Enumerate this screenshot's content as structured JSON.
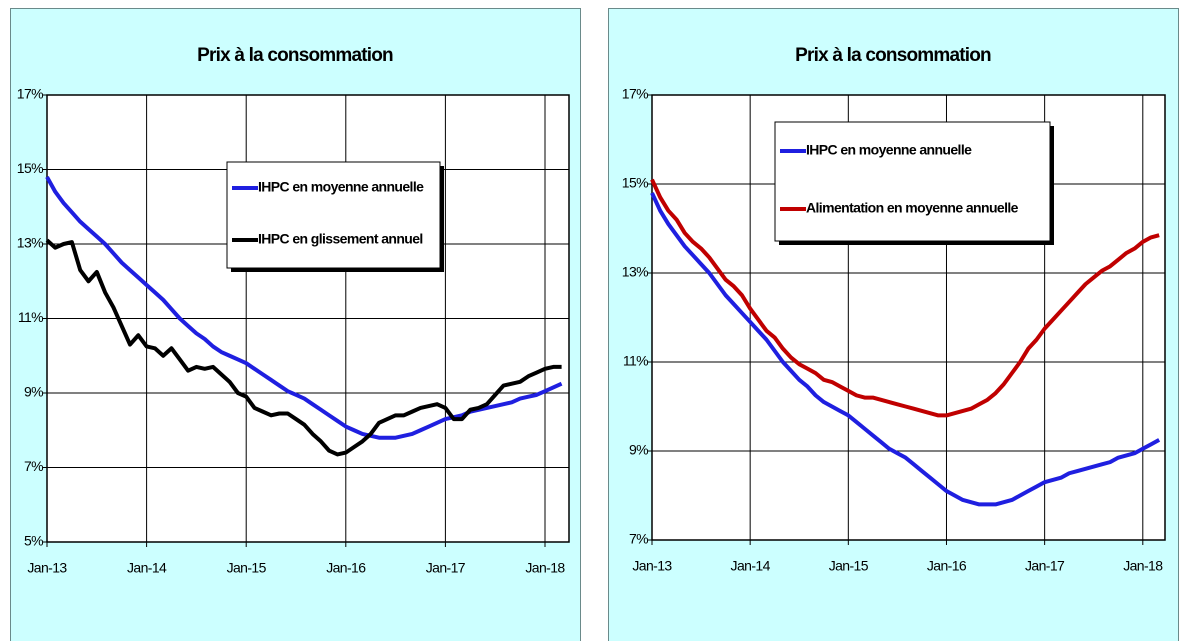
{
  "chart_data": [
    {
      "type": "line",
      "title": "Prix à la consommation",
      "categories": [
        "Jan-13",
        null,
        null,
        null,
        null,
        null,
        null,
        null,
        null,
        null,
        null,
        null,
        "Jan-14",
        null,
        null,
        null,
        null,
        null,
        null,
        null,
        null,
        null,
        null,
        null,
        "Jan-15",
        null,
        null,
        null,
        null,
        null,
        null,
        null,
        null,
        null,
        null,
        null,
        "Jan-16",
        null,
        null,
        null,
        null,
        null,
        null,
        null,
        null,
        null,
        null,
        null,
        "Jan-17",
        null,
        null,
        null,
        null,
        null,
        null,
        null,
        null,
        null,
        null,
        null,
        "Jan-18",
        null,
        null
      ],
      "series": [
        {
          "name": "IHPC en moyenne annuelle",
          "color": "#1f1fe0",
          "values": [
            14.8,
            14.4,
            14.1,
            13.85,
            13.6,
            13.4,
            13.2,
            13.0,
            12.75,
            12.5,
            12.3,
            12.1,
            11.9,
            11.7,
            11.5,
            11.25,
            11.0,
            10.8,
            10.6,
            10.45,
            10.25,
            10.1,
            10.0,
            9.9,
            9.8,
            9.65,
            9.5,
            9.35,
            9.2,
            9.05,
            8.95,
            8.85,
            8.7,
            8.55,
            8.4,
            8.25,
            8.1,
            8.0,
            7.9,
            7.85,
            7.8,
            7.8,
            7.8,
            7.85,
            7.9,
            8.0,
            8.1,
            8.2,
            8.3,
            8.35,
            8.4,
            8.5,
            8.55,
            8.6,
            8.65,
            8.7,
            8.75,
            8.85,
            8.9,
            8.95,
            9.05,
            9.15,
            9.25
          ]
        },
        {
          "name": "IHPC en glissement annuel",
          "color": "#000000",
          "values": [
            13.1,
            12.9,
            13.0,
            13.05,
            12.3,
            12.0,
            12.25,
            11.7,
            11.3,
            10.8,
            10.3,
            10.55,
            10.25,
            10.2,
            10.0,
            10.2,
            9.9,
            9.6,
            9.7,
            9.65,
            9.7,
            9.5,
            9.3,
            9.0,
            8.9,
            8.6,
            8.5,
            8.4,
            8.45,
            8.45,
            8.3,
            8.15,
            7.9,
            7.7,
            7.45,
            7.35,
            7.4,
            7.55,
            7.7,
            7.9,
            8.2,
            8.3,
            8.4,
            8.4,
            8.5,
            8.6,
            8.65,
            8.7,
            8.6,
            8.3,
            8.3,
            8.55,
            8.6,
            8.7,
            8.95,
            9.2,
            9.25,
            9.3,
            9.45,
            9.55,
            9.65,
            9.7,
            9.7
          ]
        }
      ],
      "ylim": [
        5,
        17
      ],
      "yticks": [
        {
          "value": 5,
          "label": "5%"
        },
        {
          "value": 7,
          "label": "7%"
        },
        {
          "value": 9,
          "label": "9%"
        },
        {
          "value": 11,
          "label": "11%"
        },
        {
          "value": 13,
          "label": "13%"
        },
        {
          "value": 15,
          "label": "15%"
        },
        {
          "value": 17,
          "label": "17%"
        }
      ],
      "grid": true
    },
    {
      "type": "line",
      "title": "Prix à la consommation",
      "categories": [
        "Jan-13",
        null,
        null,
        null,
        null,
        null,
        null,
        null,
        null,
        null,
        null,
        null,
        "Jan-14",
        null,
        null,
        null,
        null,
        null,
        null,
        null,
        null,
        null,
        null,
        null,
        "Jan-15",
        null,
        null,
        null,
        null,
        null,
        null,
        null,
        null,
        null,
        null,
        null,
        "Jan-16",
        null,
        null,
        null,
        null,
        null,
        null,
        null,
        null,
        null,
        null,
        null,
        "Jan-17",
        null,
        null,
        null,
        null,
        null,
        null,
        null,
        null,
        null,
        null,
        null,
        "Jan-18",
        null,
        null
      ],
      "series": [
        {
          "name": "IHPC en moyenne annuelle",
          "color": "#1f1fe0",
          "values": [
            14.8,
            14.4,
            14.1,
            13.85,
            13.6,
            13.4,
            13.2,
            13.0,
            12.75,
            12.5,
            12.3,
            12.1,
            11.9,
            11.7,
            11.5,
            11.25,
            11.0,
            10.8,
            10.6,
            10.45,
            10.25,
            10.1,
            10.0,
            9.9,
            9.8,
            9.65,
            9.5,
            9.35,
            9.2,
            9.05,
            8.95,
            8.85,
            8.7,
            8.55,
            8.4,
            8.25,
            8.1,
            8.0,
            7.9,
            7.85,
            7.8,
            7.8,
            7.8,
            7.85,
            7.9,
            8.0,
            8.1,
            8.2,
            8.3,
            8.35,
            8.4,
            8.5,
            8.55,
            8.6,
            8.65,
            8.7,
            8.75,
            8.85,
            8.9,
            8.95,
            9.05,
            9.15,
            9.25
          ]
        },
        {
          "name": "Alimentation en moyenne annuelle",
          "color": "#c00000",
          "values": [
            15.1,
            14.7,
            14.4,
            14.2,
            13.9,
            13.7,
            13.55,
            13.35,
            13.1,
            12.85,
            12.7,
            12.5,
            12.2,
            11.95,
            11.7,
            11.55,
            11.3,
            11.1,
            10.95,
            10.85,
            10.75,
            10.6,
            10.55,
            10.45,
            10.35,
            10.25,
            10.2,
            10.2,
            10.15,
            10.1,
            10.05,
            10.0,
            9.95,
            9.9,
            9.85,
            9.8,
            9.8,
            9.85,
            9.9,
            9.95,
            10.05,
            10.15,
            10.3,
            10.5,
            10.75,
            11.0,
            11.3,
            11.5,
            11.75,
            11.95,
            12.15,
            12.35,
            12.55,
            12.75,
            12.9,
            13.05,
            13.15,
            13.3,
            13.45,
            13.55,
            13.7,
            13.8,
            13.85
          ]
        }
      ],
      "ylim": [
        7,
        17
      ],
      "yticks": [
        {
          "value": 7,
          "label": "7%"
        },
        {
          "value": 9,
          "label": "9%"
        },
        {
          "value": 11,
          "label": "11%"
        },
        {
          "value": 13,
          "label": "13%"
        },
        {
          "value": 15,
          "label": "15%"
        },
        {
          "value": 17,
          "label": "17%"
        }
      ],
      "grid": true
    }
  ]
}
